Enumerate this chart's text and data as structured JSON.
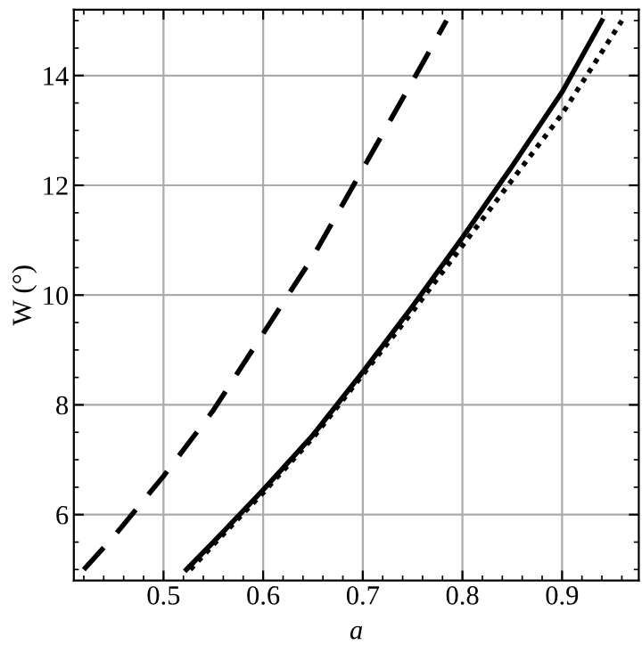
{
  "chart_data": {
    "type": "line",
    "xlabel": "a",
    "ylabel": "W (°)",
    "xlim": [
      0.41,
      0.977
    ],
    "ylim": [
      4.8,
      15.2
    ],
    "xticks": [
      0.5,
      0.6,
      0.7,
      0.8,
      0.9
    ],
    "yticks": [
      6,
      8,
      10,
      12,
      14
    ],
    "grid": true,
    "legend": false,
    "marker": "none",
    "series": [
      {
        "color": "#000000",
        "line_style": "dashed",
        "x": [
          0.42,
          0.45,
          0.5,
          0.55,
          0.6,
          0.65,
          0.7,
          0.75,
          0.784
        ],
        "values": [
          5.0,
          5.6,
          6.7,
          7.9,
          9.3,
          10.7,
          12.3,
          13.9,
          15.0
        ]
      },
      {
        "color": "#000000",
        "line_style": "solid",
        "x": [
          0.523,
          0.55,
          0.6,
          0.65,
          0.7,
          0.75,
          0.8,
          0.85,
          0.9,
          0.94
        ],
        "values": [
          5.0,
          5.5,
          6.45,
          7.45,
          8.6,
          9.8,
          11.05,
          12.35,
          13.7,
          15.0
        ]
      },
      {
        "color": "#000000",
        "line_style": "dotted",
        "x": [
          0.527,
          0.55,
          0.6,
          0.65,
          0.7,
          0.75,
          0.8,
          0.85,
          0.9,
          0.96
        ],
        "values": [
          5.0,
          5.45,
          6.4,
          7.4,
          8.55,
          9.7,
          10.9,
          12.1,
          13.3,
          15.0
        ]
      }
    ]
  }
}
